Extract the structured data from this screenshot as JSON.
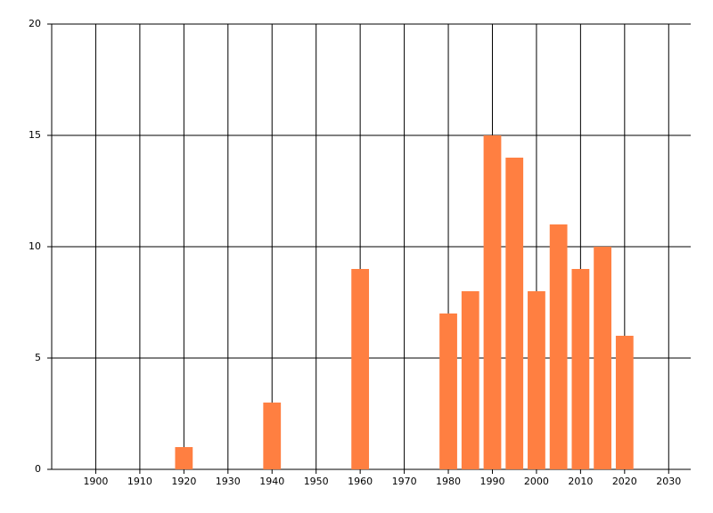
{
  "chart_data": {
    "type": "bar",
    "x": [
      1920,
      1940,
      1960,
      1980,
      1985,
      1990,
      1995,
      2000,
      2005,
      2010,
      2015,
      2020
    ],
    "values": [
      1,
      3,
      9,
      7,
      8,
      15,
      14,
      8,
      11,
      9,
      10,
      6
    ],
    "color": "#ff7f41",
    "xlim": [
      1890,
      2035
    ],
    "xticks": [
      1900,
      1910,
      1920,
      1930,
      1940,
      1950,
      1960,
      1970,
      1980,
      1990,
      2000,
      2010,
      2020,
      2030
    ],
    "ylim": [
      0,
      20
    ],
    "yticks": [
      0,
      5,
      10,
      15,
      20
    ],
    "bar_width": 4,
    "grid": true
  }
}
